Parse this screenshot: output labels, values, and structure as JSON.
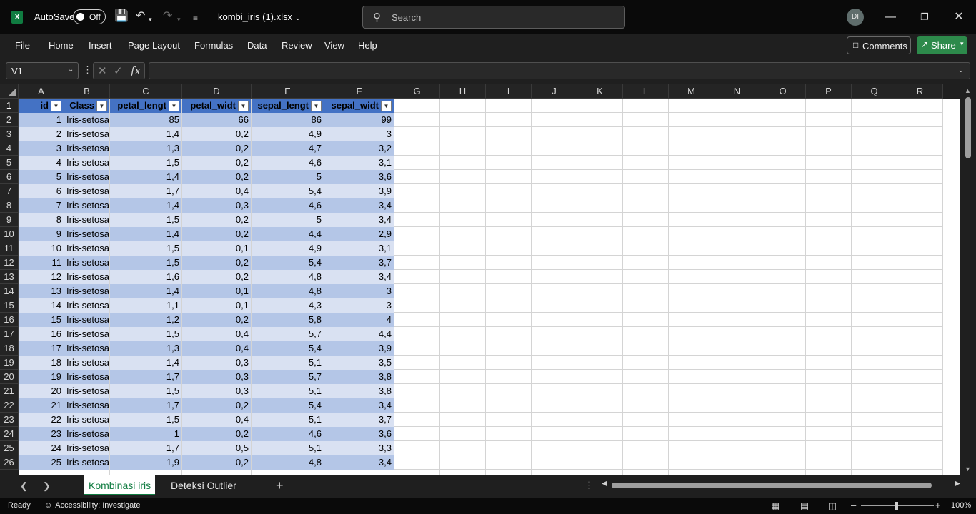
{
  "titlebar": {
    "app_icon": "excel-icon",
    "autosave_label": "AutoSave",
    "autosave_state": "Off",
    "filename": "kombi_iris (1).xlsx",
    "search_placeholder": "Search",
    "user_initials": "DI"
  },
  "ribbon": {
    "tabs": [
      "File",
      "Home",
      "Insert",
      "Page Layout",
      "Formulas",
      "Data",
      "Review",
      "View",
      "Help"
    ],
    "comments_label": "Comments",
    "share_label": "Share"
  },
  "formula_bar": {
    "name_box": "V1",
    "formula": ""
  },
  "sheet": {
    "column_headers": [
      "A",
      "B",
      "C",
      "D",
      "E",
      "F",
      "G",
      "H",
      "I",
      "J",
      "K",
      "L",
      "M",
      "N",
      "O",
      "P",
      "Q",
      "R"
    ],
    "row_numbers": [
      "1",
      "2",
      "3",
      "4",
      "5",
      "6",
      "7",
      "8",
      "9",
      "10",
      "11",
      "12",
      "13",
      "14",
      "15",
      "16",
      "17",
      "18",
      "19",
      "20",
      "21",
      "22",
      "23",
      "24",
      "25",
      "26"
    ],
    "table_headers": [
      "id",
      "Class",
      "petal_lengt",
      "petal_widt",
      "sepal_lengt",
      "sepal_widt"
    ],
    "rows": [
      [
        "1",
        "Iris-setosa",
        "85",
        "66",
        "86",
        "99"
      ],
      [
        "2",
        "Iris-setosa",
        "1,4",
        "0,2",
        "4,9",
        "3"
      ],
      [
        "3",
        "Iris-setosa",
        "1,3",
        "0,2",
        "4,7",
        "3,2"
      ],
      [
        "4",
        "Iris-setosa",
        "1,5",
        "0,2",
        "4,6",
        "3,1"
      ],
      [
        "5",
        "Iris-setosa",
        "1,4",
        "0,2",
        "5",
        "3,6"
      ],
      [
        "6",
        "Iris-setosa",
        "1,7",
        "0,4",
        "5,4",
        "3,9"
      ],
      [
        "7",
        "Iris-setosa",
        "1,4",
        "0,3",
        "4,6",
        "3,4"
      ],
      [
        "8",
        "Iris-setosa",
        "1,5",
        "0,2",
        "5",
        "3,4"
      ],
      [
        "9",
        "Iris-setosa",
        "1,4",
        "0,2",
        "4,4",
        "2,9"
      ],
      [
        "10",
        "Iris-setosa",
        "1,5",
        "0,1",
        "4,9",
        "3,1"
      ],
      [
        "11",
        "Iris-setosa",
        "1,5",
        "0,2",
        "5,4",
        "3,7"
      ],
      [
        "12",
        "Iris-setosa",
        "1,6",
        "0,2",
        "4,8",
        "3,4"
      ],
      [
        "13",
        "Iris-setosa",
        "1,4",
        "0,1",
        "4,8",
        "3"
      ],
      [
        "14",
        "Iris-setosa",
        "1,1",
        "0,1",
        "4,3",
        "3"
      ],
      [
        "15",
        "Iris-setosa",
        "1,2",
        "0,2",
        "5,8",
        "4"
      ],
      [
        "16",
        "Iris-setosa",
        "1,5",
        "0,4",
        "5,7",
        "4,4"
      ],
      [
        "17",
        "Iris-setosa",
        "1,3",
        "0,4",
        "5,4",
        "3,9"
      ],
      [
        "18",
        "Iris-setosa",
        "1,4",
        "0,3",
        "5,1",
        "3,5"
      ],
      [
        "19",
        "Iris-setosa",
        "1,7",
        "0,3",
        "5,7",
        "3,8"
      ],
      [
        "20",
        "Iris-setosa",
        "1,5",
        "0,3",
        "5,1",
        "3,8"
      ],
      [
        "21",
        "Iris-setosa",
        "1,7",
        "0,2",
        "5,4",
        "3,4"
      ],
      [
        "22",
        "Iris-setosa",
        "1,5",
        "0,4",
        "5,1",
        "3,7"
      ],
      [
        "23",
        "Iris-setosa",
        "1",
        "0,2",
        "4,6",
        "3,6"
      ],
      [
        "24",
        "Iris-setosa",
        "1,7",
        "0,5",
        "5,1",
        "3,3"
      ],
      [
        "25",
        "Iris-setosa",
        "1,9",
        "0,2",
        "4,8",
        "3,4"
      ]
    ],
    "table_colors": {
      "header": "#4472c4",
      "band_light": "#d9e1f2",
      "band_dark": "#b4c6e7"
    }
  },
  "sheet_tabs": {
    "tabs": [
      "Kombinasi iris",
      "Deteksi Outlier"
    ],
    "active_index": 0,
    "add_label": "+"
  },
  "status_bar": {
    "ready": "Ready",
    "accessibility": "Accessibility: Investigate",
    "zoom": "100%"
  },
  "colors": {
    "accent_green": "#107c41",
    "share_green": "#2d8a4b"
  }
}
